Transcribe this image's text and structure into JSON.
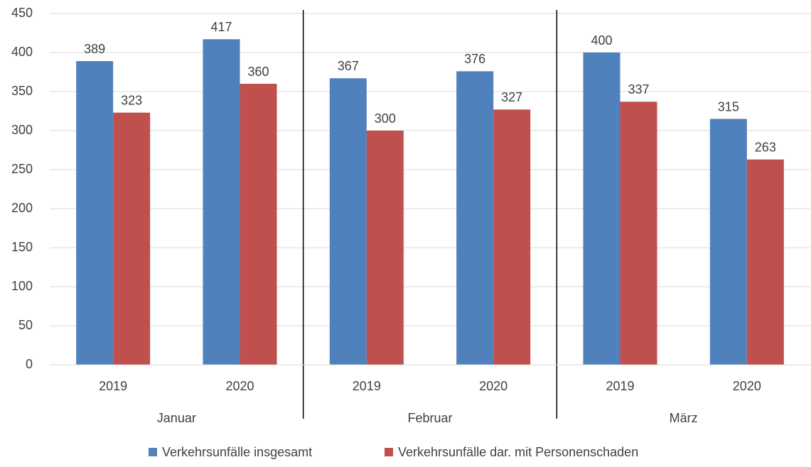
{
  "chart_data": {
    "type": "bar",
    "categories": [
      "2019",
      "2020",
      "2019",
      "2020",
      "2019",
      "2020"
    ],
    "group_labels": [
      "Januar",
      "Februar",
      "März"
    ],
    "series": [
      {
        "name": "Verkehrsunfälle insgesamt",
        "color": "#4f81bd",
        "values": [
          389,
          417,
          367,
          376,
          400,
          315
        ]
      },
      {
        "name": "Verkehrsunfälle dar. mit Personenschaden",
        "color": "#c0504d",
        "values": [
          323,
          360,
          300,
          327,
          337,
          263
        ]
      }
    ],
    "ylim": [
      0,
      450
    ],
    "yticks": [
      0,
      50,
      100,
      150,
      200,
      250,
      300,
      350,
      400,
      450
    ],
    "grid": true,
    "legend": "bottom"
  }
}
